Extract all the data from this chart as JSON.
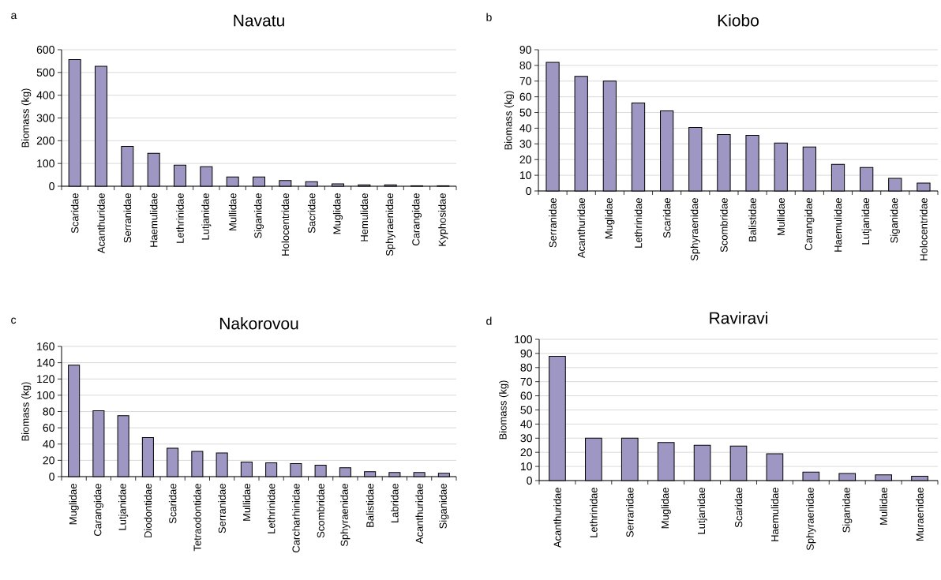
{
  "chart_data": [
    {
      "type": "bar",
      "title": "Navatu",
      "ylabel": "Biomass (kg)",
      "annotations": [
        "a"
      ],
      "categories": [
        "Scaridae",
        "Acanthuridae",
        "Serranidae",
        "Haemulidae",
        "Lethrinidae",
        "Lutjanidae",
        "Mullidae",
        "Siganidae",
        "Holocentridae",
        "Sacridae",
        "Muglidae",
        "Hemulidae",
        "Sphyraenidae",
        "Carangidae",
        "Kyphosidae"
      ],
      "values": [
        557,
        527,
        175,
        145,
        93,
        86,
        41,
        41,
        25,
        20,
        10,
        6,
        6,
        2,
        2
      ],
      "color": "#9e96c3",
      "ylim": [
        0,
        600
      ],
      "yticks": [
        0,
        100,
        200,
        300,
        400,
        500,
        600
      ],
      "grid": "y"
    },
    {
      "type": "bar",
      "title": "Kiobo",
      "ylabel": "Biomass (kg)",
      "annotations": [
        "b"
      ],
      "categories": [
        "Serranidae",
        "Acanthuridae",
        "Muglidae",
        "Lethrinidae",
        "Scaridae",
        "Sphyraenidae",
        "Scombridae",
        "Balistidae",
        "Mullidae",
        "Carangidae",
        "Haemulidae",
        "Lutjanidae",
        "Siganidae",
        "Holocentridae"
      ],
      "values": [
        82,
        73,
        70,
        56,
        51,
        40.5,
        36,
        35.5,
        30.5,
        28,
        17,
        15,
        8,
        5
      ],
      "color": "#9e96c3",
      "ylim": [
        0,
        90
      ],
      "yticks": [
        0,
        10,
        20,
        30,
        40,
        50,
        60,
        70,
        80,
        90
      ],
      "grid": "y"
    },
    {
      "type": "bar",
      "title": "Nakorovou",
      "ylabel": "Biomass (kg)",
      "annotations": [
        "c"
      ],
      "categories": [
        "Muglidae",
        "Carangidae",
        "Lutjanidae",
        "Diodontidae",
        "Scaridae",
        "Tetraodontidae",
        "Serranidae",
        "Mullidae",
        "Lethrinidae",
        "Carcharhinidae",
        "Scombridae",
        "Sphyraenidae",
        "Balistidae",
        "Labridae",
        "Acanthuridae",
        "Siganidae"
      ],
      "values": [
        137,
        81,
        75,
        48,
        35,
        31,
        29,
        18,
        17,
        16,
        14,
        11,
        6,
        5,
        5,
        4
      ],
      "color": "#9e96c3",
      "ylim": [
        0,
        160
      ],
      "yticks": [
        0,
        20,
        40,
        60,
        80,
        100,
        120,
        140,
        160
      ],
      "grid": "y"
    },
    {
      "type": "bar",
      "title": "Raviravi",
      "ylabel": "Biomass (kg)",
      "annotations": [
        "d"
      ],
      "categories": [
        "Acanthuridae",
        "Lethrinidae",
        "Serranidae",
        "Muglidae",
        "Lutjanidae",
        "Scaridae",
        "Haemulidae",
        "Sphyraenidae",
        "Siganidae",
        "Mullidae",
        "Muraenidae"
      ],
      "values": [
        88,
        30,
        30,
        27,
        25,
        24.5,
        19,
        6,
        5,
        4,
        3
      ],
      "color": "#9e96c3",
      "ylim": [
        0,
        100
      ],
      "yticks": [
        0,
        10,
        20,
        30,
        40,
        50,
        60,
        70,
        80,
        90,
        100
      ],
      "grid": "y"
    }
  ]
}
